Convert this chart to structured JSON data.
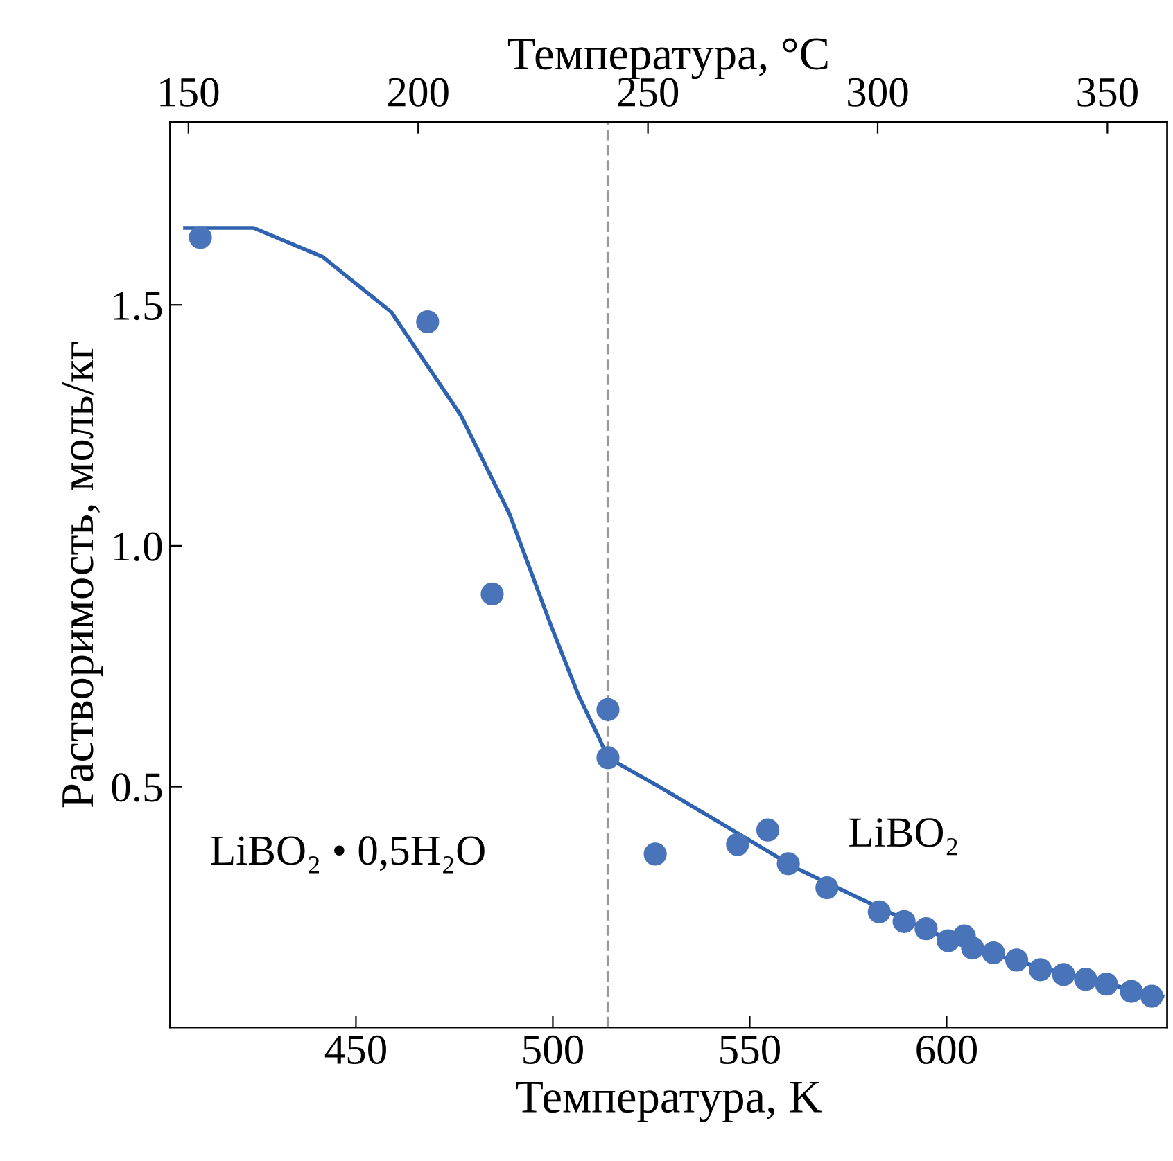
{
  "chart_data": {
    "type": "scatter",
    "xlabel": "Температура, K",
    "ylabel": "Растворимость, моль/кг",
    "x2label": "Температура, °C",
    "xlim": [
      402.8,
      656
    ],
    "xticks": [
      450,
      500,
      550,
      600
    ],
    "ylim": [
      0,
      1.88
    ],
    "yticks": [
      {
        "value": 0.5,
        "label": "0.5"
      },
      {
        "value": 1.0,
        "label": "1.0"
      },
      {
        "value": 1.5,
        "label": "1.5"
      }
    ],
    "x2lim": [
      146,
      363
    ],
    "x2ticks": [
      150,
      200,
      250,
      300,
      350
    ],
    "grid": false,
    "legend": false,
    "series": [
      {
        "color": "#4a74b9",
        "marker": "circle",
        "x": [
          410.5,
          468.2,
          484.6,
          514,
          514,
          526,
          546.9,
          554.6,
          559.8,
          569.6,
          582.9,
          589.2,
          594.8,
          600.4,
          604.5,
          606.6,
          611.9,
          617.8,
          622.4,
          623.8,
          629.7,
          635.3,
          640.6,
          646.9,
          652.1
        ],
        "values": [
          1.64,
          1.465,
          0.9,
          0.66,
          0.56,
          0.36,
          0.38,
          0.41,
          0.34,
          0.29,
          0.24,
          0.22,
          0.205,
          0.18,
          0.19,
          0.165,
          0.155,
          0.14,
          null,
          0.12,
          0.11,
          0.1,
          0.09,
          0.075,
          0.065
        ]
      },
      {
        "type": "line",
        "color": "#2f62b0",
        "marker": "none",
        "line_style": "solid",
        "x": [
          406.6,
          424,
          441.5,
          459,
          476.7,
          489,
          499.5,
          506.5,
          511.8,
          514,
          527,
          544.5,
          562,
          580,
          597,
          614.5,
          635.5,
          654.8
        ],
        "values": [
          1.66,
          1.66,
          1.6,
          1.485,
          1.27,
          1.066,
          0.835,
          0.69,
          0.6,
          0.56,
          0.5,
          0.415,
          0.33,
          0.26,
          0.195,
          0.145,
          0.1,
          0.065
        ]
      }
    ],
    "ref_lines": [
      {
        "axis": "x",
        "value": 514,
        "color": "#999999",
        "line_style": "dashed"
      }
    ],
    "annotations": [
      "LiBO₂ • 0,5H₂O",
      "LiBO₂"
    ]
  }
}
